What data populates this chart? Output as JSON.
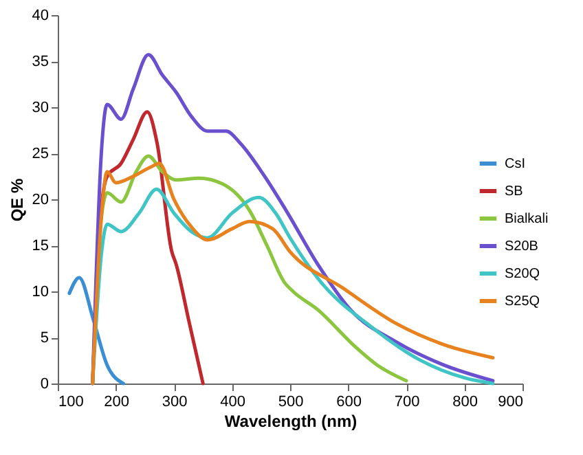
{
  "chart_data": {
    "type": "line",
    "xlabel": "Wavelength (nm)",
    "ylabel": "QE %",
    "xlim": [
      100,
      900
    ],
    "xticks": [
      100,
      200,
      300,
      400,
      500,
      600,
      700,
      800,
      900
    ],
    "ylim": [
      0,
      40
    ],
    "yticks": [
      0,
      5,
      10,
      15,
      20,
      25,
      30,
      35,
      40
    ],
    "grid": false,
    "legend": "right",
    "marker": "none",
    "line_style": "solid",
    "series": [
      {
        "name": "CsI",
        "color": "#3a8fd4",
        "x": [
          120,
          137,
          161,
          185,
          213
        ],
        "values": [
          9.8,
          11.5,
          7,
          2,
          0
        ]
      },
      {
        "name": "SB",
        "color": "#c0282d",
        "x": [
          160,
          175,
          185,
          209,
          230,
          254,
          271,
          296,
          304,
          325,
          350
        ],
        "values": [
          0,
          19,
          22.5,
          23.9,
          26.5,
          29.5,
          26.1,
          14.4,
          12.9,
          7,
          0
        ]
      },
      {
        "name": "Bialkali",
        "color": "#8cc63f",
        "x": [
          160,
          175,
          185,
          209,
          235,
          256,
          280,
          304,
          343,
          383,
          430,
          460,
          490,
          505,
          548,
          612,
          650,
          700
        ],
        "values": [
          0,
          18,
          20.7,
          19.7,
          23,
          24.7,
          23,
          22.1,
          22.3,
          21.7,
          18.8,
          15,
          11,
          10,
          8,
          4,
          2,
          0.3
        ]
      },
      {
        "name": "S20B",
        "color": "#6a4fcf",
        "x": [
          160,
          175,
          185,
          209,
          230,
          256,
          280,
          304,
          330,
          358,
          390,
          414,
          454,
          493,
          548,
          604,
          683,
          761,
          849
        ],
        "values": [
          0,
          25,
          30.3,
          28.7,
          32,
          35.7,
          33.5,
          31.6,
          29,
          27.4,
          27.4,
          26.1,
          22.7,
          18.8,
          12.9,
          8,
          4.5,
          2.1,
          0.3
        ]
      },
      {
        "name": "S20Q",
        "color": "#3fc5c5",
        "x": [
          160,
          175,
          185,
          209,
          240,
          270,
          300,
          330,
          357,
          400,
          446,
          475,
          500,
          548,
          643,
          722,
          801,
          849
        ],
        "values": [
          0,
          14,
          17.3,
          16.5,
          18.5,
          21.1,
          18.5,
          16.5,
          15.8,
          18.5,
          20.2,
          18.5,
          15.8,
          11.4,
          6,
          2.6,
          0.6,
          0
        ]
      },
      {
        "name": "S25Q",
        "color": "#e8821f",
        "x": [
          160,
          175,
          185,
          200,
          230,
          260,
          275,
          300,
          330,
          358,
          400,
          430,
          470,
          500,
          590,
          683,
          761,
          849
        ],
        "values": [
          0,
          18,
          23,
          21.8,
          22.5,
          23.5,
          23.9,
          20,
          17,
          15.6,
          16.8,
          17.6,
          16.8,
          14.3,
          10.4,
          6.5,
          4.3,
          2.8
        ]
      }
    ]
  }
}
